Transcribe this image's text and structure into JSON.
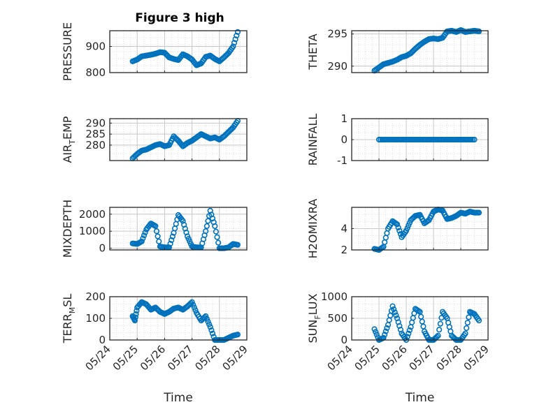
{
  "figure": {
    "title": "Figure 3 high",
    "marker_color": "#0072BD",
    "axis_color": "#262626",
    "grid_color": "#DFDFDF"
  },
  "chart_data": [
    {
      "type": "scatter",
      "ylabel": "PRESSURE",
      "xlabel": "",
      "ylim": [
        800,
        960
      ],
      "yticks": [
        800,
        900
      ],
      "ytick_labels": [
        "800",
        "900"
      ],
      "show_xtick_labels": false,
      "grid": true,
      "x": [
        "05/24 20:00",
        "05/25 00:00",
        "05/25 04:00",
        "05/25 08:00",
        "05/25 12:00",
        "05/25 16:00",
        "05/25 20:00",
        "05/26 00:00",
        "05/26 04:00",
        "05/26 08:00",
        "05/26 12:00",
        "05/26 16:00",
        "05/26 20:00",
        "05/27 00:00",
        "05/27 04:00",
        "05/27 08:00",
        "05/27 12:00",
        "05/27 16:00",
        "05/27 20:00",
        "05/28 00:00",
        "05/28 04:00",
        "05/28 08:00",
        "05/28 12:00",
        "05/28 16:00"
      ],
      "y": [
        843,
        850,
        862,
        865,
        868,
        872,
        878,
        876,
        858,
        852,
        848,
        870,
        862,
        850,
        828,
        835,
        860,
        865,
        852,
        843,
        858,
        875,
        900,
        955
      ]
    },
    {
      "type": "scatter",
      "ylabel": "THETA",
      "xlabel": "",
      "ylim": [
        289,
        295.5
      ],
      "yticks": [
        290,
        295
      ],
      "ytick_labels": [
        "290",
        "295"
      ],
      "show_xtick_labels": false,
      "grid": true,
      "x": [
        "05/24 20:00",
        "05/25 00:00",
        "05/25 04:00",
        "05/25 08:00",
        "05/25 12:00",
        "05/25 16:00",
        "05/25 20:00",
        "05/26 00:00",
        "05/26 04:00",
        "05/26 08:00",
        "05/26 12:00",
        "05/26 16:00",
        "05/26 20:00",
        "05/27 00:00",
        "05/27 04:00",
        "05/27 08:00",
        "05/27 12:00",
        "05/27 16:00",
        "05/27 20:00",
        "05/28 00:00",
        "05/28 04:00",
        "05/28 08:00",
        "05/28 12:00",
        "05/28 16:00"
      ],
      "y": [
        289.3,
        289.8,
        290.3,
        290.5,
        290.7,
        291.0,
        291.4,
        291.6,
        292.0,
        292.7,
        293.3,
        293.8,
        294.2,
        294.3,
        294.2,
        294.4,
        295.4,
        295.5,
        295.3,
        295.6,
        295.3,
        295.4,
        295.5,
        295.4
      ]
    },
    {
      "type": "scatter",
      "ylabel": "AIR_TEMP",
      "xlabel": "",
      "ylim": [
        273,
        292
      ],
      "yticks": [
        280,
        285,
        290
      ],
      "ytick_labels": [
        "280",
        "285",
        "290"
      ],
      "show_xtick_labels": false,
      "grid": true,
      "x": [
        "05/24 20:00",
        "05/25 00:00",
        "05/25 04:00",
        "05/25 08:00",
        "05/25 12:00",
        "05/25 16:00",
        "05/25 20:00",
        "05/26 00:00",
        "05/26 04:00",
        "05/26 08:00",
        "05/26 12:00",
        "05/26 16:00",
        "05/26 20:00",
        "05/27 00:00",
        "05/27 04:00",
        "05/27 08:00",
        "05/27 12:00",
        "05/27 16:00",
        "05/27 20:00",
        "05/28 00:00",
        "05/28 04:00",
        "05/28 08:00",
        "05/28 12:00",
        "05/28 16:00"
      ],
      "y": [
        274,
        276,
        277.5,
        278,
        279,
        280,
        280.5,
        279.5,
        280,
        284,
        282,
        279.5,
        281,
        282,
        283.5,
        285,
        284,
        283,
        283.5,
        282.5,
        284,
        286,
        288,
        291
      ]
    },
    {
      "type": "scatter",
      "ylabel": "RAINFALL",
      "xlabel": "",
      "ylim": [
        -1,
        1
      ],
      "yticks": [
        -1,
        0,
        1
      ],
      "ytick_labels": [
        "-1",
        "0",
        "1"
      ],
      "show_xtick_labels": false,
      "grid": true,
      "x_range": [
        "05/25 00:00",
        "05/28 12:00"
      ],
      "y": 0
    },
    {
      "type": "scatter",
      "ylabel": "MIXDEPTH",
      "xlabel": "",
      "ylim": [
        -100,
        2400
      ],
      "yticks": [
        0,
        1000,
        2000
      ],
      "ytick_labels": [
        "0",
        "1000",
        "2000"
      ],
      "show_xtick_labels": false,
      "grid": true,
      "x": [
        "05/24 20:00",
        "05/25 00:00",
        "05/25 04:00",
        "05/25 08:00",
        "05/25 12:00",
        "05/25 16:00",
        "05/25 20:00",
        "05/26 00:00",
        "05/26 04:00",
        "05/26 08:00",
        "05/26 12:00",
        "05/26 16:00",
        "05/26 20:00",
        "05/27 00:00",
        "05/27 04:00",
        "05/27 08:00",
        "05/27 12:00",
        "05/27 16:00",
        "05/27 20:00",
        "05/28 00:00",
        "05/28 04:00",
        "05/28 08:00",
        "05/28 12:00",
        "05/28 16:00"
      ],
      "y": [
        280,
        250,
        400,
        1100,
        1450,
        1300,
        100,
        50,
        50,
        900,
        1950,
        1600,
        700,
        100,
        50,
        50,
        1000,
        2200,
        1300,
        0,
        0,
        50,
        250,
        200
      ]
    },
    {
      "type": "scatter",
      "ylabel": "H2OMIXRA",
      "xlabel": "",
      "ylim": [
        2,
        6
      ],
      "yticks": [
        2,
        4
      ],
      "ytick_labels": [
        "2",
        "4"
      ],
      "show_xtick_labels": false,
      "grid": true,
      "x": [
        "05/24 20:00",
        "05/25 00:00",
        "05/25 04:00",
        "05/25 08:00",
        "05/25 12:00",
        "05/25 16:00",
        "05/25 20:00",
        "05/26 00:00",
        "05/26 04:00",
        "05/26 08:00",
        "05/26 12:00",
        "05/26 16:00",
        "05/26 20:00",
        "05/27 00:00",
        "05/27 04:00",
        "05/27 08:00",
        "05/27 12:00",
        "05/27 16:00",
        "05/27 20:00",
        "05/28 00:00",
        "05/28 04:00",
        "05/28 08:00",
        "05/28 12:00",
        "05/28 16:00"
      ],
      "y": [
        2.1,
        2.0,
        2.3,
        4.0,
        4.7,
        4.4,
        3.2,
        3.8,
        4.8,
        5.2,
        5.3,
        4.5,
        4.8,
        5.6,
        5.8,
        5.7,
        4.9,
        5.0,
        5.2,
        5.5,
        5.4,
        5.6,
        5.5,
        5.5
      ]
    },
    {
      "type": "scatter",
      "ylabel": "TERR_MSL",
      "xlabel": "Time",
      "ylim": [
        0,
        200
      ],
      "yticks": [
        0,
        100,
        200
      ],
      "ytick_labels": [
        "0",
        "100",
        "200"
      ],
      "xticks": [
        "05/24",
        "05/25",
        "05/26",
        "05/27",
        "05/28",
        "05/29"
      ],
      "show_xtick_labels": true,
      "grid": true,
      "x": [
        "05/24 20:00",
        "05/24 22:00",
        "05/25 00:00",
        "05/25 04:00",
        "05/25 08:00",
        "05/25 12:00",
        "05/25 16:00",
        "05/25 20:00",
        "05/26 00:00",
        "05/26 04:00",
        "05/26 08:00",
        "05/26 12:00",
        "05/26 16:00",
        "05/26 20:00",
        "05/27 00:00",
        "05/27 04:00",
        "05/27 08:00",
        "05/27 12:00",
        "05/27 16:00",
        "05/27 20:00",
        "05/28 00:00",
        "05/28 04:00",
        "05/28 08:00",
        "05/28 12:00",
        "05/28 16:00"
      ],
      "y": [
        110,
        90,
        150,
        175,
        165,
        140,
        150,
        130,
        120,
        130,
        145,
        150,
        140,
        155,
        175,
        125,
        90,
        110,
        60,
        0,
        0,
        0,
        10,
        20,
        25
      ]
    },
    {
      "type": "scatter",
      "ylabel": "SUN_FLUX",
      "xlabel": "Time",
      "ylim": [
        0,
        1000
      ],
      "yticks": [
        0,
        500,
        1000
      ],
      "ytick_labels": [
        "0",
        "500",
        "1000"
      ],
      "xticks": [
        "05/24",
        "05/25",
        "05/26",
        "05/27",
        "05/28",
        "05/29"
      ],
      "show_xtick_labels": true,
      "grid": true,
      "x": [
        "05/24 20:00",
        "05/25 00:00",
        "05/25 04:00",
        "05/25 08:00",
        "05/25 12:00",
        "05/25 16:00",
        "05/25 20:00",
        "05/26 00:00",
        "05/26 04:00",
        "05/26 08:00",
        "05/26 12:00",
        "05/26 16:00",
        "05/26 20:00",
        "05/27 00:00",
        "05/27 04:00",
        "05/27 08:00",
        "05/27 12:00",
        "05/27 16:00",
        "05/27 20:00",
        "05/28 00:00",
        "05/28 04:00",
        "05/28 08:00",
        "05/28 12:00",
        "05/28 16:00"
      ],
      "y": [
        250,
        0,
        50,
        350,
        780,
        500,
        150,
        0,
        300,
        720,
        650,
        200,
        0,
        0,
        100,
        650,
        500,
        100,
        0,
        0,
        150,
        650,
        600,
        450
      ]
    }
  ]
}
